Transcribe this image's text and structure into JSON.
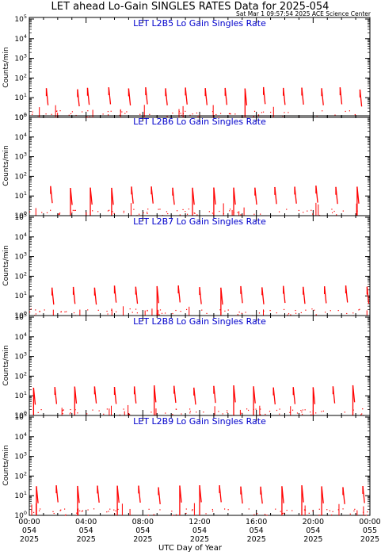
{
  "title": "LET ahead Lo-Gain SINGLES RATES Data for 2025-054",
  "stamp": "Sat Mar  1 09:57:54 2025 ACE Science Center",
  "xlabel": "UTC Day of Year",
  "ylabel": "Counts/min",
  "colors": {
    "series": "#ff0000",
    "panel_title": "#0000cc",
    "axis": "#000000"
  },
  "x_ticks": [
    {
      "time": "00:00",
      "doy": "054",
      "year": "2025"
    },
    {
      "time": "04:00",
      "doy": "054",
      "year": "2025"
    },
    {
      "time": "08:00",
      "doy": "054",
      "year": "2025"
    },
    {
      "time": "12:00",
      "doy": "054",
      "year": "2025"
    },
    {
      "time": "16:00",
      "doy": "054",
      "year": "2025"
    },
    {
      "time": "20:00",
      "doy": "054",
      "year": "2025"
    },
    {
      "time": "00:00",
      "doy": "055",
      "year": "2025"
    }
  ],
  "y_ticks": [
    "10^0",
    "10^1",
    "10^2",
    "10^3",
    "10^4",
    "10^5"
  ],
  "chart_data": [
    {
      "type": "line",
      "title": "LET L2B5 Lo Gain Singles Rate",
      "xlim_hours": [
        0,
        24
      ],
      "ylim": [
        1,
        100000
      ],
      "yscale": "log",
      "bursts_hours": [
        1.2,
        3.4,
        4.1,
        5.6,
        7.0,
        8.2,
        9.6,
        11.0,
        12.4,
        13.8,
        15.2,
        16.5,
        17.9,
        19.2,
        20.6,
        21.9,
        23.3
      ],
      "burst_peak": 30,
      "baseline": 1
    },
    {
      "type": "line",
      "title": "LET L2B6 Lo Gain Singles Rate",
      "xlim_hours": [
        0,
        24
      ],
      "ylim": [
        1,
        100000
      ],
      "yscale": "log",
      "bursts_hours": [
        1.5,
        2.9,
        4.3,
        5.8,
        7.2,
        8.6,
        10.1,
        11.5,
        13.0,
        14.4,
        15.9,
        17.3,
        18.7,
        20.2,
        21.6,
        23.1
      ],
      "burst_peak": 30,
      "baseline": 1
    },
    {
      "type": "line",
      "title": "LET L2B7 Lo Gain Singles Rate",
      "xlim_hours": [
        0,
        24
      ],
      "ylim": [
        1,
        100000
      ],
      "yscale": "log",
      "bursts_hours": [
        1.6,
        3.1,
        4.6,
        6.0,
        7.5,
        9.0,
        10.5,
        12.0,
        13.5,
        14.9,
        16.4,
        17.9,
        19.3,
        20.8,
        22.3,
        23.8
      ],
      "burst_peak": 30,
      "baseline": 1
    },
    {
      "type": "line",
      "title": "LET L2B8 Lo Gain Singles Rate",
      "xlim_hours": [
        0,
        24
      ],
      "ylim": [
        1,
        100000
      ],
      "yscale": "log",
      "bursts_hours": [
        0.3,
        1.8,
        3.2,
        4.6,
        6.0,
        7.4,
        8.8,
        10.2,
        11.6,
        13.0,
        14.4,
        15.8,
        17.2,
        18.6,
        20.0,
        21.4,
        22.8
      ],
      "burst_peak": 30,
      "baseline": 1
    },
    {
      "type": "line",
      "title": "LET L2B9 Lo Gain Singles Rate",
      "xlim_hours": [
        0,
        24
      ],
      "ylim": [
        1,
        100000
      ],
      "yscale": "log",
      "bursts_hours": [
        0.5,
        1.9,
        3.4,
        4.8,
        6.2,
        7.7,
        9.1,
        10.6,
        12.0,
        13.4,
        14.9,
        16.3,
        17.8,
        19.2,
        20.6,
        22.1,
        23.5
      ],
      "burst_peak": 30,
      "baseline": 1
    }
  ]
}
